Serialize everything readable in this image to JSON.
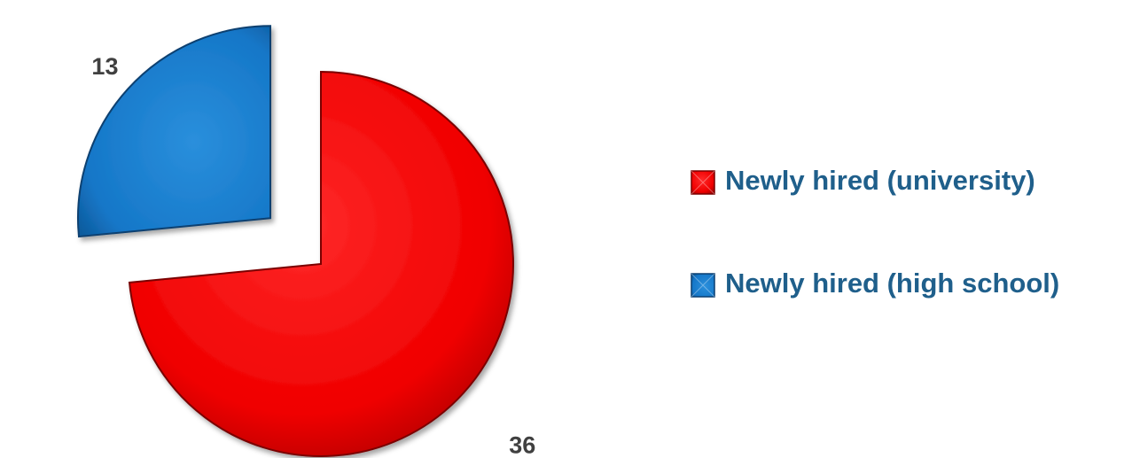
{
  "chart_data": {
    "type": "pie",
    "categories": [
      "Newly hired (university)",
      "Newly hired (high school)"
    ],
    "values": [
      36,
      13
    ],
    "colors": [
      "#ff0000",
      "#1a7fd0"
    ],
    "legend_position": "right",
    "exploded": true,
    "start_angle_deg": 0
  }
}
